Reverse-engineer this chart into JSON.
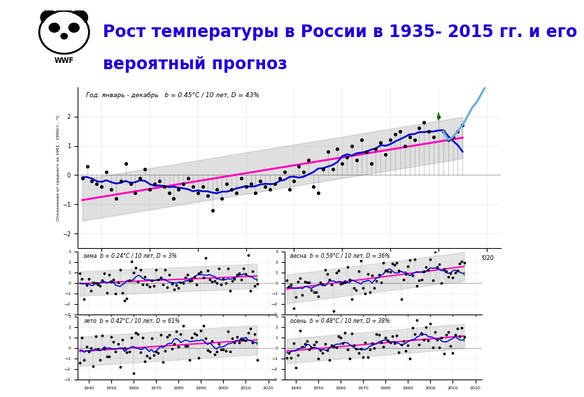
{
  "title_line1": "Рост температуры в России в 1935- 2015 гг. и его",
  "title_line2": "вероятный прогноз",
  "title_color": "#2200CC",
  "title_fontsize": 17,
  "bg_color": "#FFFFFF",
  "left_bar_color": "#5BB8F5",
  "chart_bg": "#E8F4FC",
  "annotation_top": "Год: январь - декабрь   b = 0.45°C / 10 лет, D = 43%",
  "annotation_winter": "зима  b = 0.24°C / 10 лет, D = 3%",
  "annotation_spring": "весна  b = 0.59°C / 10 лет, D = 36%",
  "annotation_summer": "лето  b = 0.42°C / 10 лет, D = 61%",
  "annotation_autumn": "осень  b = 0.48°C / 10 лет, D = 38%",
  "ylabel": "Отклонения от среднего за 1961 - 1990гг., °С",
  "main_data_x": [
    1936,
    1937,
    1938,
    1939,
    1940,
    1941,
    1942,
    1943,
    1944,
    1945,
    1946,
    1947,
    1948,
    1949,
    1950,
    1951,
    1952,
    1953,
    1954,
    1955,
    1956,
    1957,
    1958,
    1959,
    1960,
    1961,
    1962,
    1963,
    1964,
    1965,
    1966,
    1967,
    1968,
    1969,
    1970,
    1971,
    1972,
    1973,
    1974,
    1975,
    1976,
    1977,
    1978,
    1979,
    1980,
    1981,
    1982,
    1983,
    1984,
    1985,
    1986,
    1987,
    1988,
    1989,
    1990,
    1991,
    1992,
    1993,
    1994,
    1995,
    1996,
    1997,
    1998,
    1999,
    2000,
    2001,
    2002,
    2003,
    2004,
    2005,
    2006,
    2007,
    2008,
    2009,
    2010,
    2011,
    2012,
    2013,
    2014,
    2015
  ],
  "main_data_y": [
    -0.1,
    0.3,
    -0.2,
    -0.3,
    -0.4,
    0.1,
    -0.5,
    -0.8,
    -0.2,
    0.4,
    -0.3,
    -0.6,
    -0.1,
    0.2,
    -0.5,
    -0.3,
    -0.2,
    -0.4,
    -0.6,
    -0.8,
    -0.5,
    -0.3,
    -0.1,
    -0.4,
    -0.6,
    -0.4,
    -0.7,
    -1.2,
    -0.5,
    -0.8,
    -0.3,
    -0.5,
    -0.6,
    -0.1,
    -0.4,
    -0.3,
    -0.6,
    -0.2,
    -0.4,
    -0.5,
    -0.3,
    -0.1,
    0.1,
    -0.5,
    -0.2,
    0.3,
    0.1,
    0.5,
    -0.4,
    -0.6,
    0.2,
    0.8,
    0.2,
    0.9,
    0.4,
    0.6,
    1.0,
    0.5,
    1.2,
    0.8,
    0.4,
    0.9,
    1.1,
    0.7,
    1.2,
    1.4,
    1.5,
    1.0,
    1.3,
    1.2,
    1.6,
    1.8,
    1.5,
    1.3,
    2.0,
    1.5,
    1.2,
    1.3,
    1.5,
    1.7
  ],
  "seeds": [
    10,
    20,
    30,
    40
  ],
  "trend_factors": [
    0.024,
    0.059,
    0.042,
    0.048
  ]
}
